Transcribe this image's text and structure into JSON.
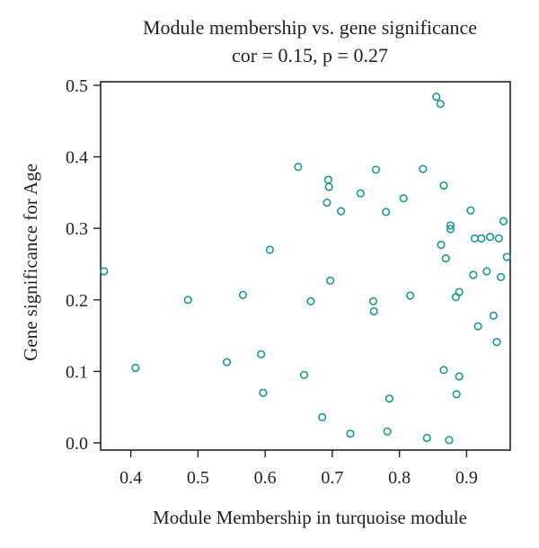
{
  "chart_data": {
    "type": "scatter",
    "title": "Module membership vs. gene significance",
    "subtitle": "cor = 0.15, p = 0.27",
    "xlabel": "Module Membership in turquoise module",
    "ylabel": "Gene significance for Age",
    "xlim": [
      0.355,
      0.965
    ],
    "ylim": [
      -0.01,
      0.505
    ],
    "xticks": [
      0.4,
      0.5,
      0.6,
      0.7,
      0.8,
      0.9
    ],
    "yticks": [
      0.0,
      0.1,
      0.2,
      0.3,
      0.4,
      0.5
    ],
    "xtick_labels": [
      "0.4",
      "0.5",
      "0.6",
      "0.7",
      "0.8",
      "0.9"
    ],
    "ytick_labels": [
      "0.0",
      "0.1",
      "0.2",
      "0.3",
      "0.4",
      "0.5"
    ],
    "grid": false,
    "marker": "open-circle",
    "color": "#1a9a8e",
    "series": [
      {
        "points": [
          [
            0.36,
            0.24
          ],
          [
            0.407,
            0.105
          ],
          [
            0.485,
            0.2
          ],
          [
            0.543,
            0.113
          ],
          [
            0.567,
            0.207
          ],
          [
            0.594,
            0.124
          ],
          [
            0.597,
            0.07
          ],
          [
            0.607,
            0.27
          ],
          [
            0.649,
            0.386
          ],
          [
            0.658,
            0.095
          ],
          [
            0.668,
            0.198
          ],
          [
            0.685,
            0.036
          ],
          [
            0.692,
            0.336
          ],
          [
            0.694,
            0.368
          ],
          [
            0.695,
            0.358
          ],
          [
            0.697,
            0.227
          ],
          [
            0.713,
            0.324
          ],
          [
            0.727,
            0.013
          ],
          [
            0.742,
            0.349
          ],
          [
            0.761,
            0.198
          ],
          [
            0.762,
            0.184
          ],
          [
            0.765,
            0.382
          ],
          [
            0.78,
            0.323
          ],
          [
            0.782,
            0.016
          ],
          [
            0.785,
            0.062
          ],
          [
            0.806,
            0.342
          ],
          [
            0.816,
            0.206
          ],
          [
            0.835,
            0.383
          ],
          [
            0.841,
            0.007
          ],
          [
            0.855,
            0.484
          ],
          [
            0.861,
            0.474
          ],
          [
            0.862,
            0.277
          ],
          [
            0.866,
            0.102
          ],
          [
            0.866,
            0.36
          ],
          [
            0.869,
            0.258
          ],
          [
            0.874,
            0.004
          ],
          [
            0.876,
            0.299
          ],
          [
            0.876,
            0.304
          ],
          [
            0.884,
            0.204
          ],
          [
            0.885,
            0.068
          ],
          [
            0.889,
            0.211
          ],
          [
            0.889,
            0.093
          ],
          [
            0.906,
            0.325
          ],
          [
            0.91,
            0.235
          ],
          [
            0.912,
            0.286
          ],
          [
            0.917,
            0.163
          ],
          [
            0.922,
            0.286
          ],
          [
            0.93,
            0.24
          ],
          [
            0.935,
            0.288
          ],
          [
            0.94,
            0.178
          ],
          [
            0.945,
            0.141
          ],
          [
            0.948,
            0.286
          ],
          [
            0.951,
            0.232
          ],
          [
            0.955,
            0.31
          ],
          [
            0.96,
            0.26
          ]
        ]
      }
    ]
  }
}
